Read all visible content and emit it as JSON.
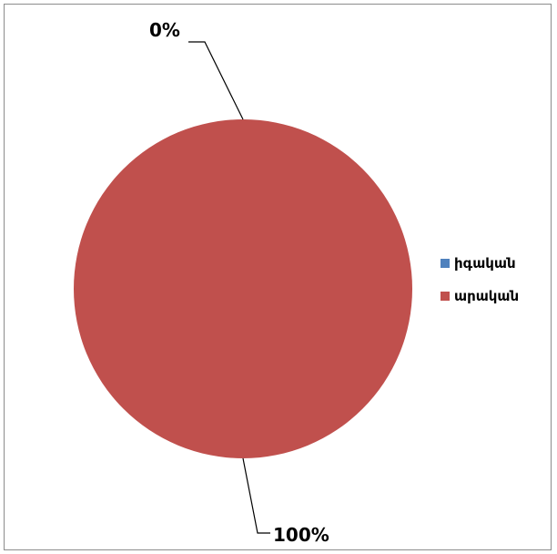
{
  "chart_data": {
    "type": "pie",
    "categories": [
      "իգական",
      "արական"
    ],
    "values": [
      0,
      100
    ],
    "data_labels": [
      "0%",
      "100%"
    ],
    "colors": [
      "#4f81bd",
      "#c0504d"
    ],
    "legend_position": "right",
    "title": ""
  }
}
